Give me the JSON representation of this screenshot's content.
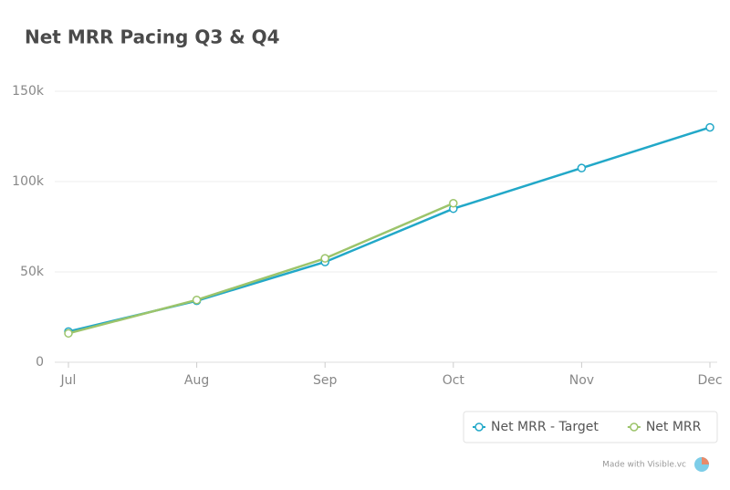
{
  "chart_data": {
    "type": "line",
    "title": "Net MRR Pacing Q3 & Q4",
    "categories": [
      "Jul",
      "Aug",
      "Sep",
      "Oct",
      "Nov",
      "Dec"
    ],
    "series": [
      {
        "name": "Net MRR - Target",
        "color": "#22a8c8",
        "values": [
          17000,
          34000,
          55500,
          85000,
          107500,
          130000
        ]
      },
      {
        "name": "Net MRR",
        "color": "#9cc46b",
        "values": [
          16000,
          34500,
          57500,
          88000,
          null,
          null
        ]
      }
    ],
    "ylim": [
      0,
      150000
    ],
    "yticks": [
      0,
      {
        "value": 50000,
        "label": "50k"
      },
      {
        "value": 100000,
        "label": "100k"
      },
      {
        "value": 150000,
        "label": "150k"
      }
    ],
    "grid": true,
    "legend": "bottom-right",
    "footer": "Made with Visible.vc"
  }
}
